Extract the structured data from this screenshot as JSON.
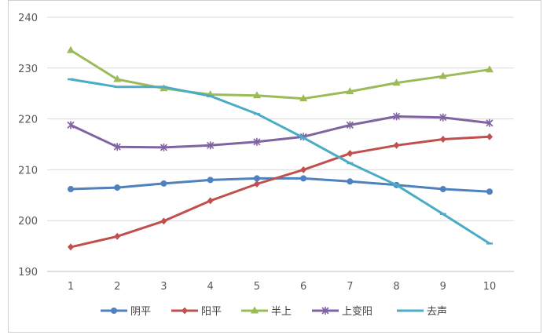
{
  "chart_data": {
    "type": "line",
    "title": "",
    "xlabel": "",
    "ylabel": "",
    "x": [
      1,
      2,
      3,
      4,
      5,
      6,
      7,
      8,
      9,
      10
    ],
    "ylim": [
      190,
      240
    ],
    "yticks": [
      190,
      200,
      210,
      220,
      230,
      240
    ],
    "grid": true,
    "legend_position": "bottom",
    "series": [
      {
        "name": "阴平",
        "color": "#4f81bd",
        "marker": "circle",
        "values": [
          206.2,
          206.5,
          207.3,
          208.0,
          208.3,
          208.3,
          207.7,
          207.0,
          206.2,
          205.7
        ]
      },
      {
        "name": "阳平",
        "color": "#c0504d",
        "marker": "diamond",
        "values": [
          194.8,
          196.9,
          199.9,
          203.9,
          207.2,
          210.0,
          213.2,
          214.8,
          216.0,
          216.5
        ]
      },
      {
        "name": "半上",
        "color": "#9bbb59",
        "marker": "triangle",
        "values": [
          233.5,
          227.8,
          226.0,
          224.8,
          224.6,
          224.0,
          225.4,
          227.1,
          228.4,
          229.7
        ]
      },
      {
        "name": "上变阳",
        "color": "#8064a2",
        "marker": "star",
        "values": [
          218.8,
          214.5,
          214.4,
          214.8,
          215.5,
          216.5,
          218.8,
          220.5,
          220.3,
          219.2
        ]
      },
      {
        "name": "去声",
        "color": "#4bacc6",
        "marker": "dash",
        "values": [
          227.8,
          226.3,
          226.3,
          224.5,
          221.0,
          216.3,
          211.3,
          207.0,
          201.3,
          195.5
        ]
      }
    ]
  }
}
